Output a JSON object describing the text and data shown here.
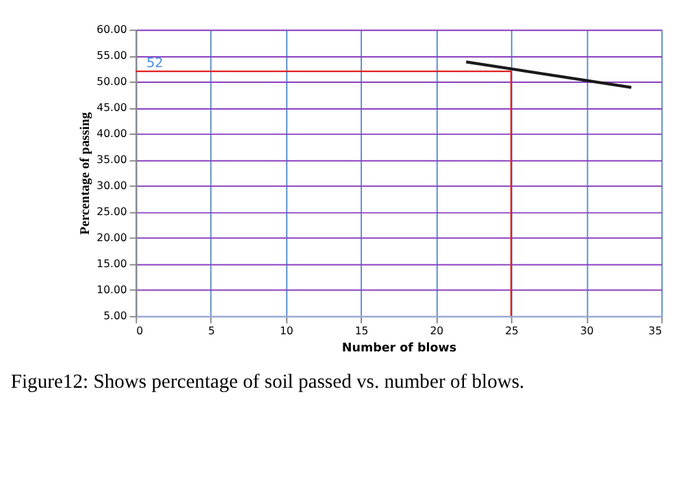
{
  "chart_data": {
    "type": "line",
    "xlabel": "Number of blows",
    "ylabel": "Percentage of passing",
    "x": [
      22,
      33
    ],
    "series": [
      {
        "color": "#1a1a1a",
        "values": [
          53.8,
          48.9
        ]
      }
    ],
    "xlim": [
      0,
      35
    ],
    "xticks": [
      0,
      5,
      10,
      15,
      20,
      25,
      30,
      35
    ],
    "ylim": [
      5,
      60
    ],
    "yticks": [
      {
        "value": 5,
        "label": "5.00"
      },
      {
        "value": 10,
        "label": "10.00"
      },
      {
        "value": 15,
        "label": "15.00"
      },
      {
        "value": 20,
        "label": "20.00"
      },
      {
        "value": 25,
        "label": "25.00"
      },
      {
        "value": 30,
        "label": "30.00"
      },
      {
        "value": 35,
        "label": "35.00"
      },
      {
        "value": 40,
        "label": "40.00"
      },
      {
        "value": 45,
        "label": "45.00"
      },
      {
        "value": 50,
        "label": "50.00"
      },
      {
        "value": 55,
        "label": "55.00"
      },
      {
        "value": 60,
        "label": "60.00"
      }
    ],
    "grid": true,
    "marker": "none",
    "line_style": "solid",
    "ref_lines": [
      {
        "axis": "x",
        "value": 25,
        "color": "#e02020"
      },
      {
        "axis": "y",
        "value": 52,
        "label": "52",
        "color": "#e02020"
      }
    ],
    "annotations": [
      "Figure12: Shows percentage of soil passed vs. number of blows."
    ]
  }
}
